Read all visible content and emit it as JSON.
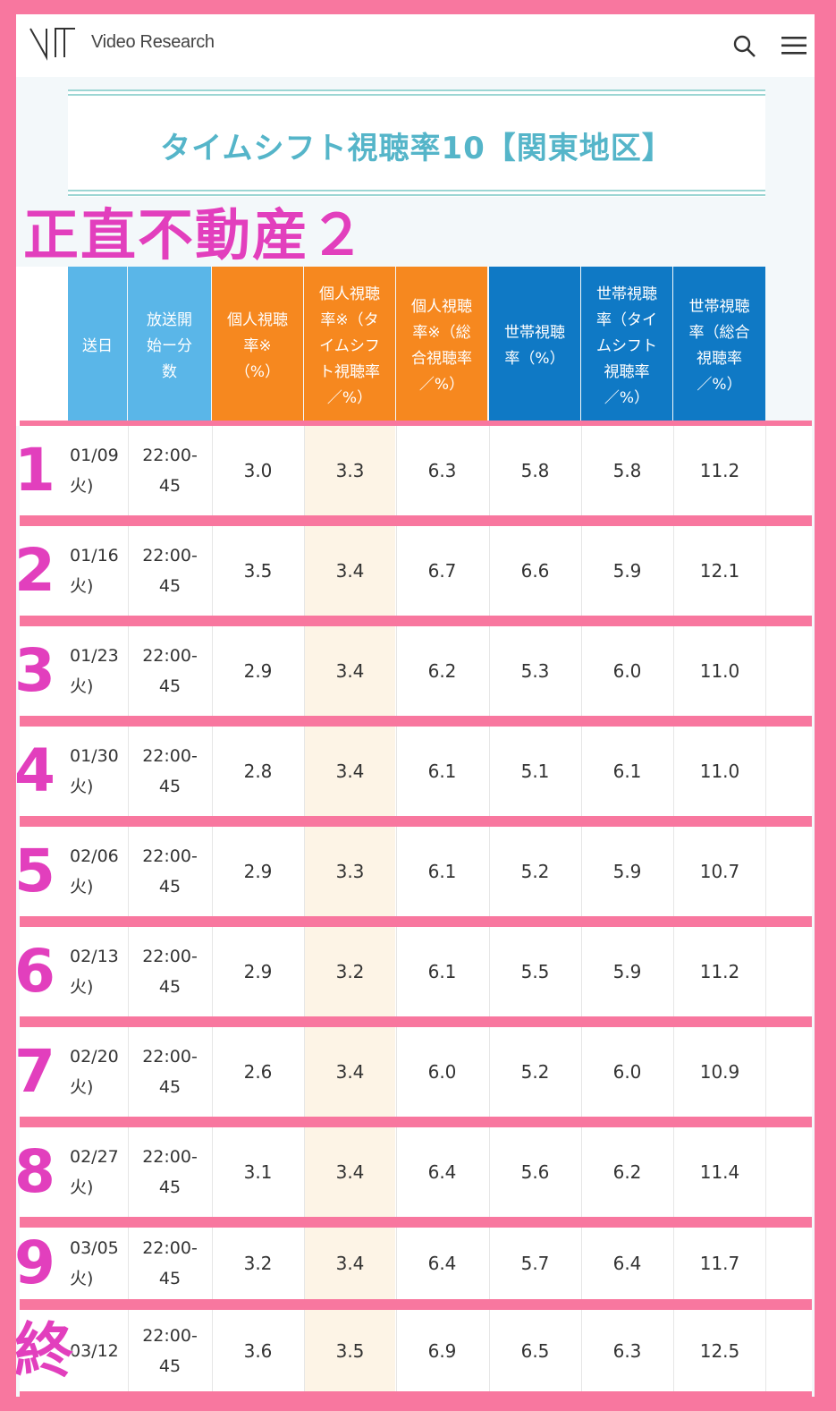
{
  "header": {
    "brand": "Video Research"
  },
  "page": {
    "title": "タイムシフト視聴率10【関東地区】",
    "overlay_title": "正直不動産２"
  },
  "table": {
    "columns": [
      "送日",
      "放送開\n始ー分\n数",
      "個人視聴\n率※\n（%）",
      "個人視聴\n率※（タ\nイムシフ\nト視聴率\n／%）",
      "個人視聴\n率※（総\n合視聴率\n／%）",
      "世帯視聴\n率（%）",
      "世帯視聴\n率（タイ\nムシフト\n視聴率\n／%）",
      "世帯視聴\n率（総合\n視聴率\n／%）"
    ],
    "rows": [
      {
        "rank": "1",
        "date": "01/09\n火)",
        "time": "22:00-\n45",
        "p": "3.0",
        "pts": "3.3",
        "ptot": "6.3",
        "h": "5.8",
        "hts": "5.8",
        "htot": "11.2"
      },
      {
        "rank": "2",
        "date": "01/16\n火)",
        "time": "22:00-\n45",
        "p": "3.5",
        "pts": "3.4",
        "ptot": "6.7",
        "h": "6.6",
        "hts": "5.9",
        "htot": "12.1"
      },
      {
        "rank": "3",
        "date": "01/23\n火)",
        "time": "22:00-\n45",
        "p": "2.9",
        "pts": "3.4",
        "ptot": "6.2",
        "h": "5.3",
        "hts": "6.0",
        "htot": "11.0"
      },
      {
        "rank": "4",
        "date": "01/30\n火)",
        "time": "22:00-\n45",
        "p": "2.8",
        "pts": "3.4",
        "ptot": "6.1",
        "h": "5.1",
        "hts": "6.1",
        "htot": "11.0"
      },
      {
        "rank": "5",
        "date": "02/06\n火)",
        "time": "22:00-\n45",
        "p": "2.9",
        "pts": "3.3",
        "ptot": "6.1",
        "h": "5.2",
        "hts": "5.9",
        "htot": "10.7"
      },
      {
        "rank": "6",
        "date": "02/13\n火)",
        "time": "22:00-\n45",
        "p": "2.9",
        "pts": "3.2",
        "ptot": "6.1",
        "h": "5.5",
        "hts": "5.9",
        "htot": "11.2"
      },
      {
        "rank": "7",
        "date": "02/20\n火)",
        "time": "22:00-\n45",
        "p": "2.6",
        "pts": "3.4",
        "ptot": "6.0",
        "h": "5.2",
        "hts": "6.0",
        "htot": "10.9"
      },
      {
        "rank": "8",
        "date": "02/27\n火)",
        "time": "22:00-\n45",
        "p": "3.1",
        "pts": "3.4",
        "ptot": "6.4",
        "h": "5.6",
        "hts": "6.2",
        "htot": "11.4"
      },
      {
        "rank": "9",
        "date": "03/05\n火)",
        "time": "22:00-\n45",
        "p": "3.2",
        "pts": "3.4",
        "ptot": "6.4",
        "h": "5.7",
        "hts": "6.4",
        "htot": "11.7"
      },
      {
        "rank": "終",
        "date": "03/12",
        "time": "22:00-\n45",
        "p": "3.6",
        "pts": "3.5",
        "ptot": "6.9",
        "h": "6.5",
        "hts": "6.3",
        "htot": "12.5"
      }
    ]
  },
  "colors": {
    "frame": "#f8779f",
    "overlay": "#e23fbd",
    "title": "#55b5c9",
    "header_light": "#5ab6e8",
    "header_orange": "#f6881f",
    "header_blue": "#0f79c5",
    "highlight": "#fdf4e6"
  },
  "icons": [
    "vr-logo-icon",
    "search-icon",
    "menu-icon"
  ]
}
